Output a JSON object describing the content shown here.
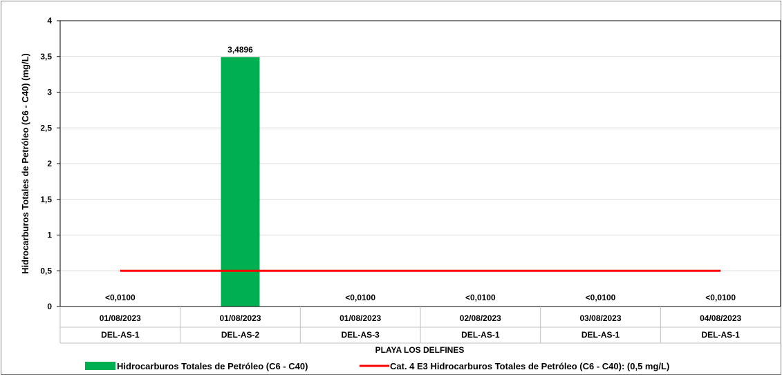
{
  "chart_data": {
    "type": "bar",
    "ylabel": "Hidrocarburos Totales de Petróleo (C6 - C40) (mg/L)",
    "xlabel": "PLAYA LOS DELFINES",
    "ylim": [
      0,
      4
    ],
    "yticks": [
      "0",
      "0,5",
      "1",
      "1,5",
      "2",
      "2,5",
      "3",
      "3,5",
      "4"
    ],
    "ytick_values": [
      0,
      0.5,
      1,
      1.5,
      2,
      2.5,
      3,
      3.5,
      4
    ],
    "grid": true,
    "categories": [
      {
        "date": "01/08/2023",
        "station": "DEL-AS-1"
      },
      {
        "date": "01/08/2023",
        "station": "DEL-AS-2"
      },
      {
        "date": "01/08/2023",
        "station": "DEL-AS-3"
      },
      {
        "date": "02/08/2023",
        "station": "DEL-AS-1"
      },
      {
        "date": "03/08/2023",
        "station": "DEL-AS-1"
      },
      {
        "date": "04/08/2023",
        "station": "DEL-AS-1"
      }
    ],
    "series": [
      {
        "name": "Hidrocarburos Totales de Petróleo (C6 - C40)",
        "type": "bar",
        "color": "#00b050",
        "values": [
          0,
          3.4896,
          0,
          0,
          0,
          0
        ],
        "data_labels": [
          "<0,0100",
          "3,4896",
          "<0,0100",
          "<0,0100",
          "<0,0100",
          "<0,0100"
        ]
      },
      {
        "name": "Cat. 4 E3 Hidrocarburos Totales de Petróleo (C6 - C40): (0,5 mg/L)",
        "type": "line",
        "color": "#ff0000",
        "values": [
          0.5,
          0.5,
          0.5,
          0.5,
          0.5,
          0.5
        ]
      }
    ],
    "legend_position": "bottom"
  }
}
